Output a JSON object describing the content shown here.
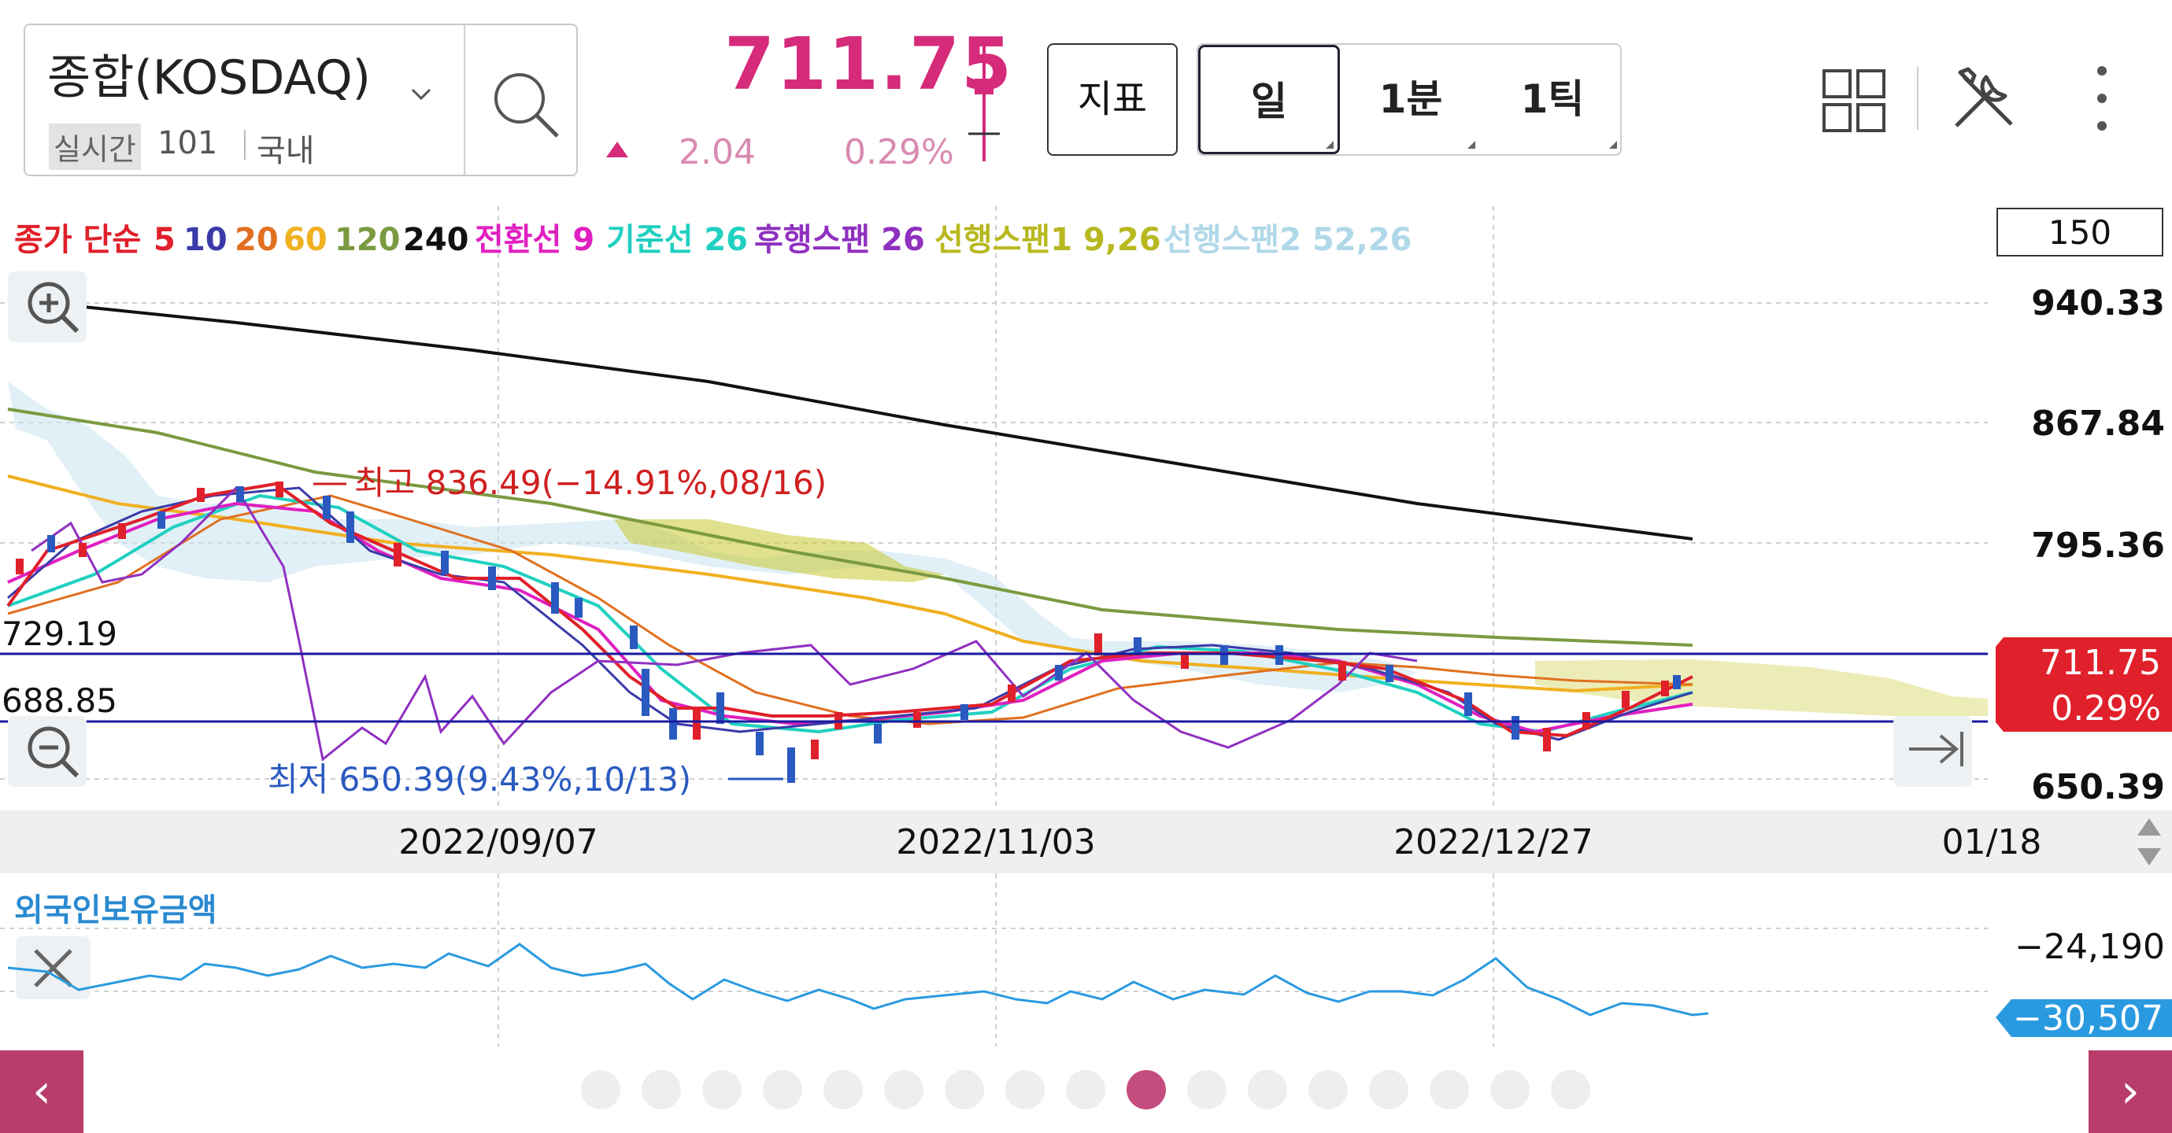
{
  "symbol": {
    "name": "종합(KOSDAQ)",
    "realtime_label": "실시간",
    "count": "101",
    "region": "국내"
  },
  "quote": {
    "price": "711.75",
    "change": "2.04",
    "change_pct": "0.29%",
    "up_color": "#d62a7a"
  },
  "toolbar": {
    "indicator_label": "지표",
    "periods": [
      "일",
      "1분",
      "1틱"
    ],
    "selected_period": "일"
  },
  "icons": {
    "symbol_dropdown": "chevron-down-icon",
    "search": "search-icon",
    "layout": "grid-icon",
    "settings": "tools-icon",
    "more": "more-vertical-icon",
    "zoom_in": "zoom-in-icon",
    "zoom_out": "zoom-out-icon",
    "scroll_end": "scroll-to-end-icon",
    "indicator_close": "close-icon"
  },
  "legend": [
    {
      "text": "종가 단순",
      "color": "#e0202a"
    },
    {
      "text": "5",
      "color": "#e0202a"
    },
    {
      "text": "10",
      "color": "#3a3aa8"
    },
    {
      "text": "20",
      "color": "#e07020"
    },
    {
      "text": "60",
      "color": "#f0b020"
    },
    {
      "text": "120",
      "color": "#7a9a40"
    },
    {
      "text": "240",
      "color": "#111111"
    },
    {
      "text": "전환선 9",
      "color": "#e020c0"
    },
    {
      "text": "기준선 26",
      "color": "#20d0c0"
    },
    {
      "text": "후행스팬 26",
      "color": "#9030c0"
    },
    {
      "text": "선행스팬1 9,26",
      "color": "#b8b820"
    },
    {
      "text": "선행스팬2 52,26",
      "color": "#b0d8e8"
    }
  ],
  "bars_setting": "150",
  "price_axis": [
    "940.33",
    "867.84",
    "795.36",
    "650.39"
  ],
  "current_price_tag": {
    "price": "711.75",
    "pct": "0.29%",
    "color": "#e0202a"
  },
  "horizontal_lines": [
    {
      "label": "729.19",
      "value": 729.19
    },
    {
      "label": "688.85",
      "value": 688.85
    }
  ],
  "annotations": {
    "high": "최고 836.49(−14.91%,08/16)",
    "low": "최저 650.39(9.43%,10/13)"
  },
  "date_axis": [
    "2022/09/07",
    "2022/11/03",
    "2022/12/27",
    "01/18"
  ],
  "sub_chart": {
    "title": "외국인보유금액",
    "axis_label": "−24,190",
    "current_tag": "−30,507",
    "tag_color": "#2a9ae0"
  },
  "chart_data": {
    "type": "line",
    "title": "",
    "ylim": [
      650.39,
      940.33
    ],
    "x_ticks": [
      "2022/09/07",
      "2022/11/03",
      "2022/12/27",
      "01/18"
    ],
    "series": [
      {
        "name": "240",
        "values": [
          920,
          903,
          880,
          855,
          832,
          812,
          795
        ]
      },
      {
        "name": "120",
        "values": [
          860,
          838,
          808,
          785,
          760,
          742,
          730
        ]
      },
      {
        "name": "60",
        "values": [
          830,
          810,
          780,
          750,
          735,
          720,
          714
        ]
      },
      {
        "name": "종가",
        "values": [
          765,
          818,
          822,
          790,
          740,
          672,
          662,
          676,
          690,
          705,
          725,
          718,
          712,
          692,
          676,
          690,
          711
        ]
      }
    ],
    "sub_series": {
      "name": "외국인보유금액",
      "values": [
        -27000,
        -26800,
        -25800,
        -25000,
        -28000,
        -29500,
        -30900,
        -29800,
        -28500,
        -27500,
        -26200,
        -27500,
        -27000,
        -25800,
        -28200,
        -30200,
        -30507
      ]
    }
  },
  "pager": {
    "dots_count": 17,
    "active_index": 9
  }
}
